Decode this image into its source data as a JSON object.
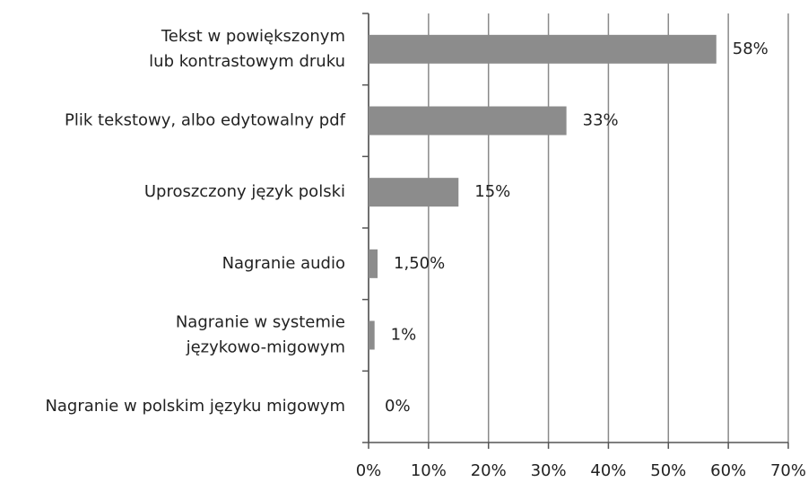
{
  "chart_data": {
    "type": "barh",
    "categories": [
      [
        "Tekst w powiększonym",
        "lub kontrastowym druku"
      ],
      [
        "Plik tekstowy, albo edytowalny pdf"
      ],
      [
        "Uproszczony język polski"
      ],
      [
        "Nagranie audio"
      ],
      [
        "Nagranie w systemie",
        "językowo-migowym"
      ],
      [
        "Nagranie w polskim języku migowym"
      ]
    ],
    "values": [
      58,
      33,
      15,
      1.5,
      1,
      0
    ],
    "value_labels": [
      "58%",
      "33%",
      "15%",
      "1,50%",
      "1%",
      "0%"
    ],
    "color": "#8c8c8c",
    "xlim": [
      0,
      70
    ],
    "xticks": [
      {
        "value": 0,
        "label": "0%"
      },
      {
        "value": 10,
        "label": "10%"
      },
      {
        "value": 20,
        "label": "20%"
      },
      {
        "value": 30,
        "label": "30%"
      },
      {
        "value": 40,
        "label": "40%"
      },
      {
        "value": 50,
        "label": "50%"
      },
      {
        "value": 60,
        "label": "60%"
      },
      {
        "value": 70,
        "label": "70%"
      }
    ],
    "grid": true
  }
}
